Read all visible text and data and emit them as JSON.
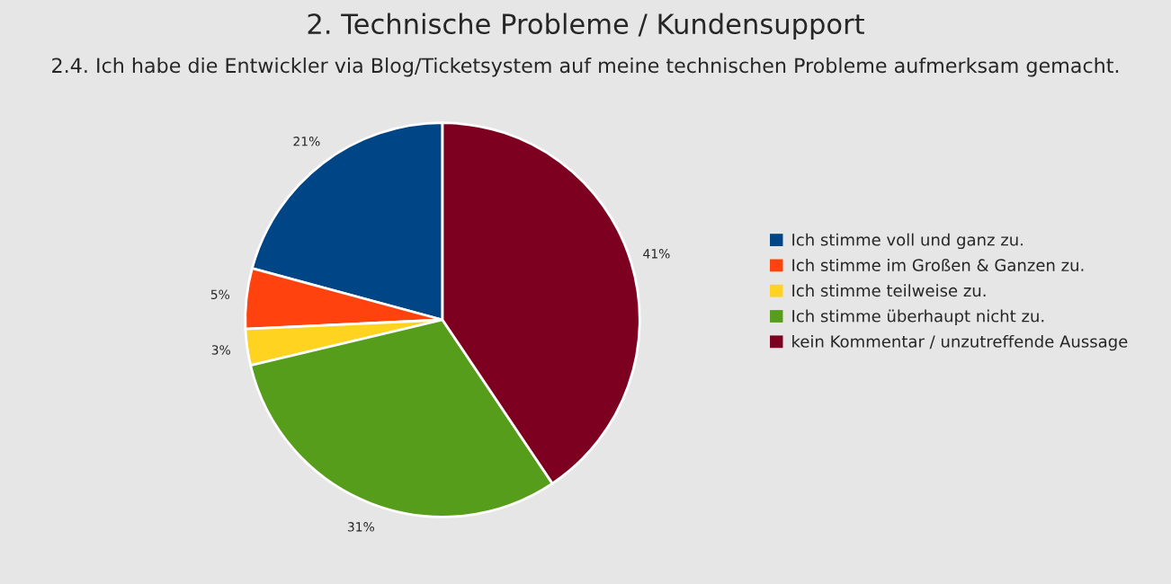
{
  "chart_data": {
    "type": "pie",
    "title": "2. Technische Probleme / Kundensupport",
    "subtitle": "2.4. Ich habe die Entwickler via Blog/Ticketsystem auf meine technischen Probleme aufmerksam gemacht.",
    "categories": [
      "Ich stimme voll und ganz zu.",
      "Ich stimme im Großen & Ganzen zu.",
      "Ich stimme teilweise zu.",
      "Ich stimme überhaupt nicht zu.",
      "kein Kommentar / unzutreffende Aussage"
    ],
    "values": [
      21,
      5,
      3,
      31,
      41
    ],
    "colors": [
      "#004586",
      "#ff420e",
      "#ffd320",
      "#579d1c",
      "#7e0021"
    ],
    "value_labels": [
      "21%",
      "5%",
      "3%",
      "31%",
      "41%"
    ],
    "legend": "right"
  }
}
